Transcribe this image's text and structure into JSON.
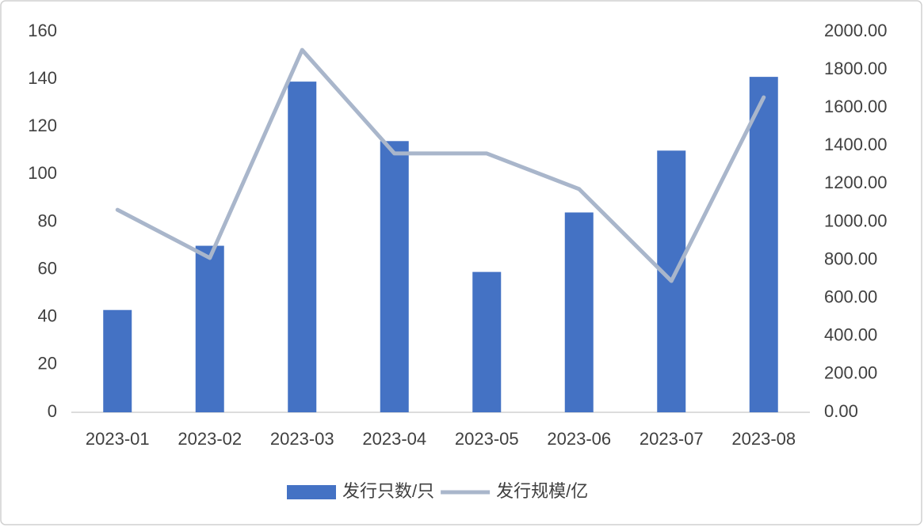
{
  "chart_data": {
    "type": "bar-line",
    "categories": [
      "2023-01",
      "2023-02",
      "2023-03",
      "2023-04",
      "2023-05",
      "2023-06",
      "2023-07",
      "2023-08"
    ],
    "series": [
      {
        "name": "发行只数/只",
        "type": "bar",
        "color": "#4472c4",
        "values": [
          43,
          70,
          139,
          114,
          59,
          84,
          110,
          141
        ]
      },
      {
        "name": "发行规模/亿",
        "type": "line",
        "axis": "y2",
        "color": "#a9b6cb",
        "values": [
          1064,
          811,
          1904,
          1360,
          1360,
          1173,
          690,
          1655
        ]
      }
    ],
    "ylim": [
      0,
      160
    ],
    "yticks": [
      0,
      20,
      40,
      60,
      80,
      100,
      120,
      140,
      160
    ],
    "y2lim": [
      0,
      2000
    ],
    "y2ticks": [
      {
        "value": 0,
        "label": "0.00"
      },
      {
        "value": 200,
        "label": "200.00"
      },
      {
        "value": 400,
        "label": "400.00"
      },
      {
        "value": 600,
        "label": "600.00"
      },
      {
        "value": 800,
        "label": "800.00"
      },
      {
        "value": 1000,
        "label": "1000.00"
      },
      {
        "value": 1200,
        "label": "1200.00"
      },
      {
        "value": 1400,
        "label": "1400.00"
      },
      {
        "value": 1600,
        "label": "1600.00"
      },
      {
        "value": 1800,
        "label": "1800.00"
      },
      {
        "value": 2000,
        "label": "2000.00"
      }
    ],
    "grid": false,
    "legend": "bottom"
  }
}
